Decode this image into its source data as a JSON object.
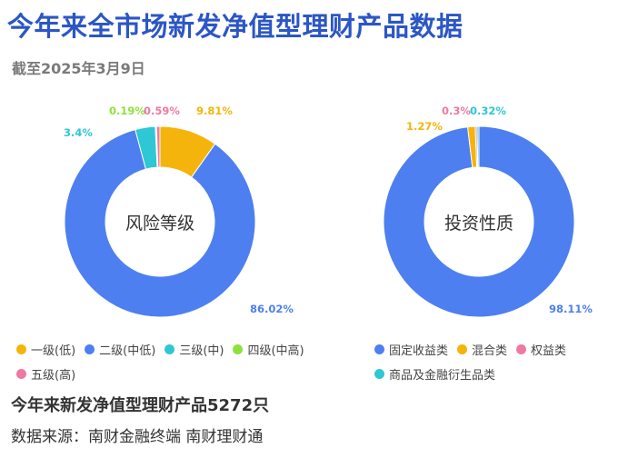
{
  "header": {
    "title": "今年来全市场新发净值型理财产品数据",
    "subtitle": "截至2025年3月9日"
  },
  "chart_data": [
    {
      "type": "pie",
      "title": "风险等级",
      "categories": [
        "一级(低)",
        "二级(中低)",
        "三级(中)",
        "四级(中高)",
        "五级(高)"
      ],
      "values": [
        9.81,
        86.02,
        3.4,
        0.19,
        0.59
      ],
      "labels": [
        "9.81%",
        "86.02%",
        "3.4%",
        "0.19%",
        "0.59%"
      ],
      "colors": [
        "#f5b40b",
        "#4d7ff0",
        "#2ec7d4",
        "#8ee03c",
        "#ee7aa0"
      ],
      "legend": "bottom"
    },
    {
      "type": "pie",
      "title": "投资性质",
      "categories": [
        "固定收益类",
        "混合类",
        "权益类",
        "商品及金融衍生品类"
      ],
      "values": [
        98.11,
        1.27,
        0.3,
        0.32
      ],
      "labels": [
        "98.11%",
        "1.27%",
        "0.3%",
        "0.32%"
      ],
      "colors": [
        "#4d7ff0",
        "#f5b40b",
        "#ee7aa0",
        "#2ec7d4"
      ],
      "legend": "bottom"
    }
  ],
  "footer": {
    "summary": "今年来新发净值型理财产品5272只",
    "source": "数据来源：南财金融终端 南财理财通"
  }
}
